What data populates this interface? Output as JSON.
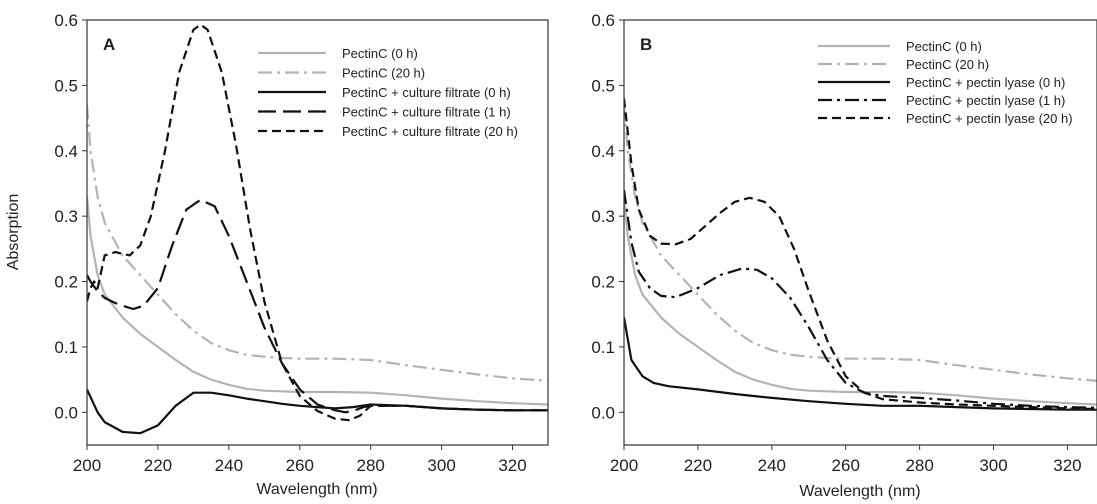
{
  "chart_data": [
    {
      "type": "line",
      "panel_label": "A",
      "xlabel": "Wavelength (nm)",
      "ylabel": "Absorption",
      "xlim": [
        200,
        330
      ],
      "ylim": [
        -0.05,
        0.6
      ],
      "xticks": [
        200,
        220,
        240,
        260,
        280,
        300,
        320
      ],
      "yticks": [
        0.0,
        0.1,
        0.2,
        0.3,
        0.4,
        0.5,
        0.6
      ],
      "xtick_labels": [
        "200",
        "220",
        "240",
        "260",
        "280",
        "300",
        "320"
      ],
      "ytick_labels": [
        "0.0",
        "0.1",
        "0.2",
        "0.3",
        "0.4",
        "0.5",
        "0.6"
      ],
      "legend_position": "top-right",
      "series": [
        {
          "name": "PectinC (0 h)",
          "color": "#b4b4b4",
          "dash": "solid",
          "x": [
            200,
            201,
            203,
            205,
            210,
            215,
            220,
            225,
            230,
            235,
            240,
            245,
            250,
            260,
            270,
            280,
            290,
            300,
            310,
            320,
            330
          ],
          "y": [
            0.33,
            0.27,
            0.21,
            0.18,
            0.145,
            0.12,
            0.1,
            0.08,
            0.062,
            0.05,
            0.042,
            0.036,
            0.033,
            0.031,
            0.031,
            0.03,
            0.026,
            0.021,
            0.017,
            0.014,
            0.012
          ]
        },
        {
          "name": "PectinC (20 h)",
          "color": "#b4b4b4",
          "dash": "dash-dot",
          "x": [
            200,
            201,
            203,
            205,
            210,
            215,
            220,
            225,
            230,
            235,
            240,
            245,
            250,
            255,
            260,
            270,
            280,
            290,
            300,
            310,
            320,
            330
          ],
          "y": [
            0.47,
            0.4,
            0.33,
            0.29,
            0.24,
            0.21,
            0.18,
            0.15,
            0.125,
            0.106,
            0.095,
            0.088,
            0.085,
            0.083,
            0.082,
            0.082,
            0.08,
            0.072,
            0.065,
            0.058,
            0.052,
            0.048
          ]
        },
        {
          "name": "PectinC + culture filtrate (0 h)",
          "color": "#111111",
          "dash": "solid",
          "x": [
            200,
            203,
            205,
            210,
            215,
            220,
            225,
            230,
            235,
            240,
            245,
            250,
            255,
            260,
            265,
            270,
            275,
            280,
            290,
            300,
            310,
            320,
            330
          ],
          "y": [
            0.035,
            0.0,
            -0.015,
            -0.03,
            -0.032,
            -0.02,
            0.01,
            0.03,
            0.03,
            0.026,
            0.021,
            0.017,
            0.013,
            0.01,
            0.008,
            0.006,
            0.008,
            0.012,
            0.01,
            0.006,
            0.004,
            0.003,
            0.003
          ]
        },
        {
          "name": "PectinC + culture filtrate (1 h)",
          "color": "#111111",
          "dash": "long-dash",
          "x": [
            200,
            201,
            203,
            205,
            208,
            210,
            213,
            216,
            220,
            224,
            228,
            232,
            236,
            240,
            245,
            250,
            255,
            260,
            265,
            270,
            273,
            276,
            278,
            280,
            290,
            300,
            310,
            320,
            330
          ],
          "y": [
            0.21,
            0.2,
            0.185,
            0.175,
            0.167,
            0.163,
            0.158,
            0.163,
            0.19,
            0.255,
            0.31,
            0.325,
            0.315,
            0.27,
            0.2,
            0.13,
            0.075,
            0.035,
            0.012,
            0.003,
            0.0,
            0.004,
            0.008,
            0.01,
            0.01,
            0.006,
            0.004,
            0.003,
            0.003
          ]
        },
        {
          "name": "PectinC + culture filtrate (20 h)",
          "color": "#111111",
          "dash": "dash",
          "x": [
            200,
            201,
            202,
            203,
            205,
            208,
            212,
            215,
            218,
            222,
            226,
            230,
            232,
            234,
            238,
            242,
            246,
            250,
            255,
            260,
            265,
            270,
            274,
            277,
            280,
            290,
            300,
            310,
            320,
            330
          ],
          "y": [
            0.17,
            0.19,
            0.2,
            0.19,
            0.24,
            0.245,
            0.24,
            0.255,
            0.3,
            0.4,
            0.52,
            0.585,
            0.593,
            0.585,
            0.52,
            0.41,
            0.28,
            0.17,
            0.075,
            0.025,
            0.002,
            -0.01,
            -0.012,
            -0.005,
            0.01,
            0.01,
            0.006,
            0.004,
            0.003,
            0.003
          ]
        }
      ]
    },
    {
      "type": "line",
      "panel_label": "B",
      "xlabel": "Wavelength (nm)",
      "ylabel": "",
      "xlim": [
        200,
        328
      ],
      "ylim": [
        -0.05,
        0.6
      ],
      "xticks": [
        200,
        220,
        240,
        260,
        280,
        300,
        320
      ],
      "yticks": [
        0.0,
        0.1,
        0.2,
        0.3,
        0.4,
        0.5,
        0.6
      ],
      "xtick_labels": [
        "200",
        "220",
        "240",
        "260",
        "280",
        "300",
        "320"
      ],
      "ytick_labels": [
        "0.0",
        "0.1",
        "0.2",
        "0.3",
        "0.4",
        "0.5",
        "0.6"
      ],
      "legend_position": "top-right",
      "series": [
        {
          "name": "PectinC (0 h)",
          "color": "#b4b4b4",
          "dash": "solid",
          "x": [
            200,
            201,
            203,
            205,
            210,
            215,
            220,
            225,
            230,
            235,
            240,
            245,
            250,
            260,
            270,
            280,
            290,
            300,
            310,
            320,
            328
          ],
          "y": [
            0.33,
            0.27,
            0.21,
            0.18,
            0.145,
            0.12,
            0.1,
            0.08,
            0.062,
            0.05,
            0.042,
            0.036,
            0.033,
            0.031,
            0.031,
            0.03,
            0.026,
            0.021,
            0.017,
            0.014,
            0.012
          ]
        },
        {
          "name": "PectinC (20 h)",
          "color": "#b4b4b4",
          "dash": "dash-dot",
          "x": [
            200,
            201,
            203,
            205,
            210,
            215,
            220,
            225,
            230,
            235,
            240,
            245,
            250,
            255,
            260,
            270,
            280,
            290,
            300,
            310,
            320,
            328
          ],
          "y": [
            0.47,
            0.4,
            0.33,
            0.29,
            0.24,
            0.21,
            0.18,
            0.15,
            0.125,
            0.106,
            0.095,
            0.088,
            0.085,
            0.083,
            0.082,
            0.082,
            0.08,
            0.072,
            0.065,
            0.058,
            0.052,
            0.048
          ]
        },
        {
          "name": "PectinC + pectin lyase (0 h)",
          "color": "#111111",
          "dash": "solid",
          "x": [
            200,
            202,
            205,
            208,
            212,
            220,
            230,
            240,
            250,
            260,
            270,
            280,
            290,
            300,
            310,
            320,
            328
          ],
          "y": [
            0.145,
            0.08,
            0.055,
            0.045,
            0.04,
            0.035,
            0.028,
            0.022,
            0.017,
            0.013,
            0.01,
            0.01,
            0.008,
            0.006,
            0.005,
            0.004,
            0.004
          ]
        },
        {
          "name": "PectinC + pectin lyase (1 h)",
          "color": "#111111",
          "dash": "dash-dot",
          "x": [
            200,
            202,
            204,
            207,
            210,
            214,
            220,
            226,
            232,
            236,
            240,
            245,
            250,
            255,
            260,
            265,
            270,
            280,
            290,
            300,
            310,
            320,
            328
          ],
          "y": [
            0.34,
            0.26,
            0.215,
            0.19,
            0.178,
            0.176,
            0.19,
            0.21,
            0.22,
            0.218,
            0.205,
            0.175,
            0.13,
            0.08,
            0.045,
            0.03,
            0.025,
            0.022,
            0.018,
            0.013,
            0.01,
            0.008,
            0.007
          ]
        },
        {
          "name": "PectinC + pectin lyase (20 h)",
          "color": "#111111",
          "dash": "dash",
          "x": [
            200,
            202,
            204,
            207,
            210,
            214,
            218,
            222,
            226,
            230,
            234,
            238,
            242,
            246,
            250,
            255,
            260,
            265,
            270,
            280,
            290,
            300,
            310,
            320,
            328
          ],
          "y": [
            0.48,
            0.38,
            0.31,
            0.27,
            0.258,
            0.257,
            0.265,
            0.285,
            0.305,
            0.322,
            0.328,
            0.322,
            0.3,
            0.25,
            0.185,
            0.11,
            0.055,
            0.03,
            0.02,
            0.015,
            0.012,
            0.01,
            0.008,
            0.006,
            0.005
          ]
        }
      ]
    }
  ]
}
